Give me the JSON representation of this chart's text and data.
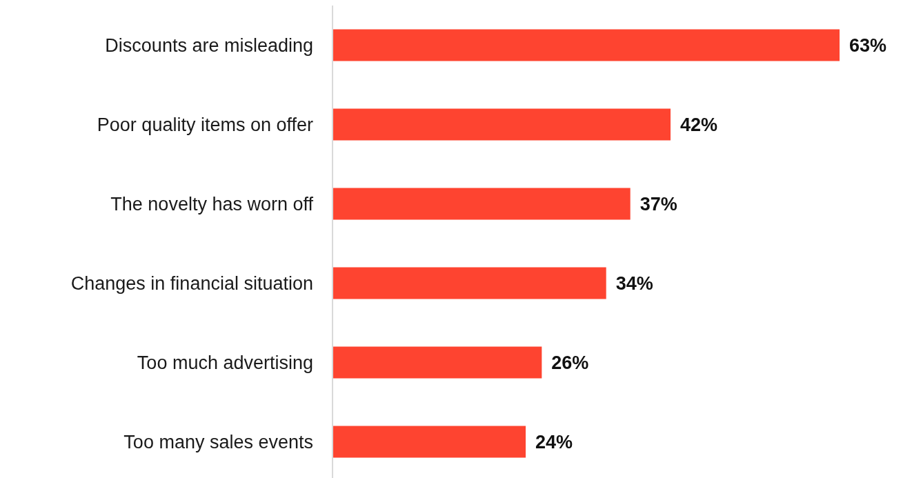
{
  "chart_data": {
    "type": "bar",
    "orientation": "horizontal",
    "categories": [
      "Discounts are misleading",
      "Poor quality items on offer",
      "The novelty has worn off",
      "Changes in financial situation",
      "Too much advertising",
      "Too many sales events"
    ],
    "values": [
      63,
      42,
      37,
      34,
      26,
      24
    ],
    "value_labels": [
      "63%",
      "42%",
      "37%",
      "34%",
      "26%",
      "24%"
    ],
    "color": "#fe4430"
  }
}
